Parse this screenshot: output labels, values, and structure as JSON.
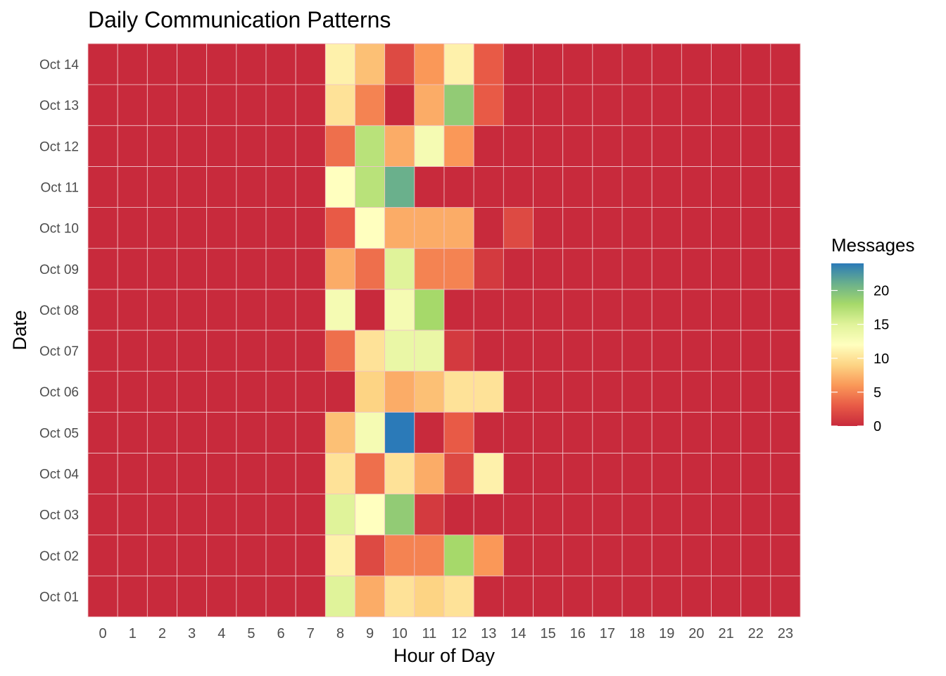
{
  "chart_data": {
    "type": "heatmap",
    "title": "Daily Communication Patterns",
    "xlabel": "Hour of Day",
    "ylabel": "Date",
    "x": [
      "0",
      "1",
      "2",
      "3",
      "4",
      "5",
      "6",
      "7",
      "8",
      "9",
      "10",
      "11",
      "12",
      "13",
      "14",
      "15",
      "16",
      "17",
      "18",
      "19",
      "20",
      "21",
      "22",
      "23"
    ],
    "y": [
      "Oct 01",
      "Oct 02",
      "Oct 03",
      "Oct 04",
      "Oct 05",
      "Oct 06",
      "Oct 07",
      "Oct 08",
      "Oct 09",
      "Oct 10",
      "Oct 11",
      "Oct 12",
      "Oct 13",
      "Oct 14"
    ],
    "values": [
      [
        0,
        0,
        0,
        0,
        0,
        0,
        0,
        0,
        15,
        7,
        10,
        9,
        10,
        0,
        0,
        0,
        0,
        0,
        0,
        0,
        0,
        0,
        0,
        0
      ],
      [
        0,
        0,
        0,
        0,
        0,
        0,
        0,
        0,
        11,
        2,
        5,
        5,
        18,
        6,
        0,
        0,
        0,
        0,
        0,
        0,
        0,
        0,
        0,
        0
      ],
      [
        0,
        0,
        0,
        0,
        0,
        0,
        0,
        0,
        15,
        12,
        19,
        1,
        0,
        0,
        0,
        0,
        0,
        0,
        0,
        0,
        0,
        0,
        0,
        0
      ],
      [
        0,
        0,
        0,
        0,
        0,
        0,
        0,
        0,
        10,
        4,
        10,
        7,
        2,
        11,
        0,
        0,
        0,
        0,
        0,
        0,
        0,
        0,
        0,
        0
      ],
      [
        0,
        0,
        0,
        0,
        0,
        0,
        0,
        0,
        8,
        13,
        24,
        0,
        3,
        0,
        0,
        0,
        0,
        0,
        0,
        0,
        0,
        0,
        0,
        0
      ],
      [
        0,
        0,
        0,
        0,
        0,
        0,
        0,
        0,
        0,
        9,
        7,
        8,
        10,
        10,
        0,
        0,
        0,
        0,
        0,
        0,
        0,
        0,
        0,
        0
      ],
      [
        0,
        0,
        0,
        0,
        0,
        0,
        0,
        0,
        4,
        10,
        14,
        14,
        1,
        0,
        0,
        0,
        0,
        0,
        0,
        0,
        0,
        0,
        0,
        0
      ],
      [
        0,
        0,
        0,
        0,
        0,
        0,
        0,
        0,
        13,
        0,
        13,
        18,
        0,
        0,
        0,
        0,
        0,
        0,
        0,
        0,
        0,
        0,
        0,
        0
      ],
      [
        0,
        0,
        0,
        0,
        0,
        0,
        0,
        0,
        7,
        4,
        15,
        5,
        5,
        1,
        0,
        0,
        0,
        0,
        0,
        0,
        0,
        0,
        0,
        0
      ],
      [
        0,
        0,
        0,
        0,
        0,
        0,
        0,
        0,
        3,
        12,
        7,
        7,
        7,
        0,
        2,
        0,
        0,
        0,
        0,
        0,
        0,
        0,
        0,
        0
      ],
      [
        0,
        0,
        0,
        0,
        0,
        0,
        0,
        0,
        12,
        17,
        21,
        0,
        0,
        0,
        0,
        0,
        0,
        0,
        0,
        0,
        0,
        0,
        0,
        0
      ],
      [
        0,
        0,
        0,
        0,
        0,
        0,
        0,
        0,
        4,
        17,
        7,
        13,
        6,
        0,
        0,
        0,
        0,
        0,
        0,
        0,
        0,
        0,
        0,
        0
      ],
      [
        0,
        0,
        0,
        0,
        0,
        0,
        0,
        0,
        10,
        5,
        0,
        7,
        19,
        3,
        0,
        0,
        0,
        0,
        0,
        0,
        0,
        0,
        0,
        0
      ],
      [
        0,
        0,
        0,
        0,
        0,
        0,
        0,
        0,
        11,
        8,
        2,
        6,
        11,
        3,
        0,
        0,
        0,
        0,
        0,
        0,
        0,
        0,
        0,
        0
      ]
    ],
    "zlim": [
      0,
      24
    ],
    "legend": {
      "title": "Messages",
      "ticks": [
        0,
        5,
        10,
        15,
        20
      ],
      "placement": "right"
    },
    "colorscale": "Spectral",
    "colors": [
      "#c82a3c",
      "#e85a46",
      "#fa9858",
      "#fdd484",
      "#ffffbf",
      "#e0f39a",
      "#a6d96a",
      "#6ab08c",
      "#2b7ab8"
    ],
    "grid": true,
    "gridline_color": "#f0c3c8"
  }
}
